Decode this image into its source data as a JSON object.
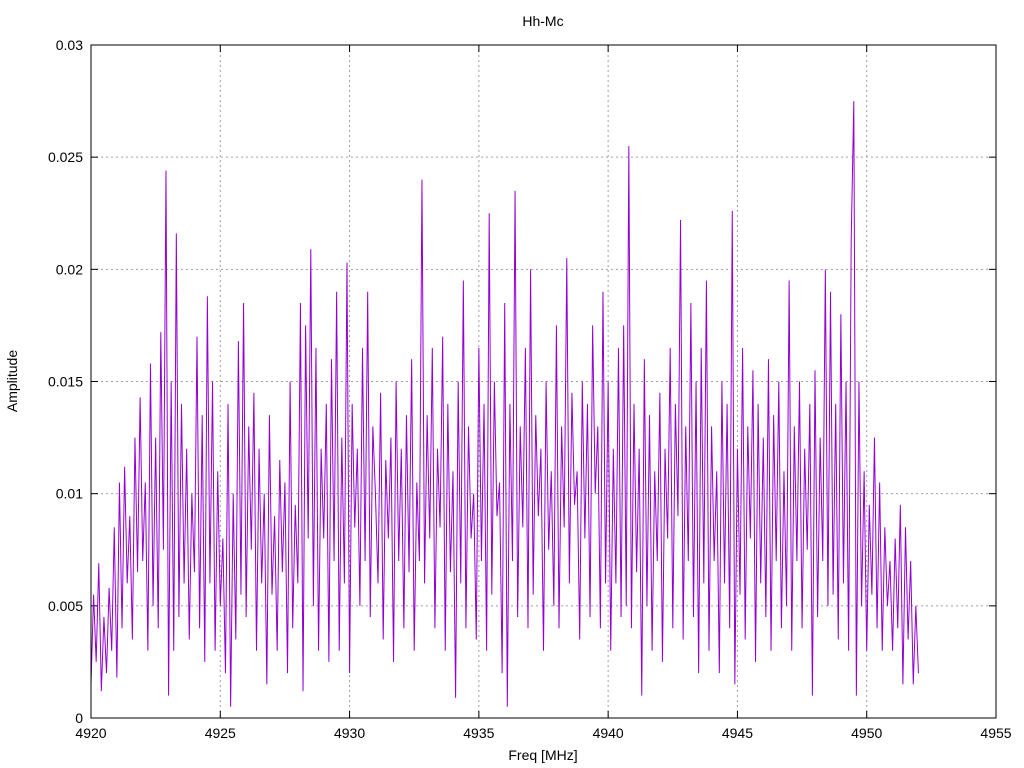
{
  "chart_data": {
    "type": "line",
    "title": "Hh-Mc",
    "xlabel": "Freq [MHz]",
    "ylabel": "Amplitude",
    "xlim": [
      4920,
      4955
    ],
    "ylim": [
      0,
      0.03
    ],
    "xticks": [
      4920,
      4925,
      4930,
      4935,
      4940,
      4945,
      4950,
      4955
    ],
    "xtick_labels": [
      "4920",
      "4925",
      "4930",
      "4935",
      "4940",
      "4945",
      "4950",
      "4955"
    ],
    "yticks": [
      0,
      0.005,
      0.01,
      0.015,
      0.02,
      0.025,
      0.03
    ],
    "ytick_labels": [
      "0",
      "0.005",
      "0.01",
      "0.015",
      "0.02",
      "0.025",
      "0.03"
    ],
    "grid": true,
    "series": [
      {
        "name": "Hh-Mc",
        "color": "#9400d3",
        "x_start": 4920,
        "x_step": 0.1,
        "values": [
          0.0015,
          0.0055,
          0.0025,
          0.0069,
          0.0012,
          0.0045,
          0.002,
          0.0058,
          0.003,
          0.0085,
          0.0018,
          0.0105,
          0.004,
          0.0112,
          0.006,
          0.009,
          0.0035,
          0.0125,
          0.0065,
          0.0143,
          0.007,
          0.0105,
          0.003,
          0.0158,
          0.005,
          0.0125,
          0.004,
          0.0172,
          0.0075,
          0.0244,
          0.001,
          0.015,
          0.003,
          0.0216,
          0.0045,
          0.014,
          0.006,
          0.012,
          0.0035,
          0.01,
          0.0065,
          0.017,
          0.004,
          0.0135,
          0.0025,
          0.0188,
          0.006,
          0.015,
          0.003,
          0.011,
          0.005,
          0.008,
          0.002,
          0.014,
          0.0005,
          0.01,
          0.0035,
          0.0168,
          0.0055,
          0.0185,
          0.0045,
          0.013,
          0.0075,
          0.0145,
          0.003,
          0.012,
          0.006,
          0.01,
          0.0015,
          0.0135,
          0.0055,
          0.009,
          0.003,
          0.0115,
          0.0065,
          0.0105,
          0.002,
          0.015,
          0.004,
          0.0095,
          0.006,
          0.0185,
          0.0012,
          0.0175,
          0.008,
          0.0209,
          0.005,
          0.0165,
          0.003,
          0.012,
          0.008,
          0.014,
          0.0025,
          0.016,
          0.007,
          0.019,
          0.003,
          0.0125,
          0.006,
          0.0203,
          0.002,
          0.014,
          0.0085,
          0.012,
          0.005,
          0.0165,
          0.007,
          0.019,
          0.0045,
          0.013,
          0.01,
          0.006,
          0.0145,
          0.0035,
          0.0115,
          0.008,
          0.0125,
          0.0025,
          0.015,
          0.007,
          0.012,
          0.004,
          0.0135,
          0.0065,
          0.016,
          0.003,
          0.0105,
          0.007,
          0.024,
          0.006,
          0.0135,
          0.008,
          0.0165,
          0.004,
          0.012,
          0.0085,
          0.017,
          0.003,
          0.014,
          0.0065,
          0.011,
          0.0009,
          0.015,
          0.006,
          0.0195,
          0.004,
          0.013,
          0.008,
          0.01,
          0.0035,
          0.0165,
          0.007,
          0.014,
          0.003,
          0.0225,
          0.0055,
          0.015,
          0.009,
          0.0105,
          0.002,
          0.0185,
          0.0005,
          0.014,
          0.007,
          0.0235,
          0.0045,
          0.013,
          0.0085,
          0.0165,
          0.004,
          0.02,
          0.0055,
          0.0135,
          0.009,
          0.012,
          0.003,
          0.015,
          0.0075,
          0.011,
          0.005,
          0.0175,
          0.004,
          0.013,
          0.0085,
          0.0205,
          0.006,
          0.0145,
          0.0095,
          0.011,
          0.0035,
          0.015,
          0.008,
          0.014,
          0.0045,
          0.0175,
          0.01,
          0.013,
          0.004,
          0.019,
          0.006,
          0.015,
          0.003,
          0.012,
          0.006,
          0.0165,
          0.0045,
          0.0175,
          0.005,
          0.0255,
          0.004,
          0.014,
          0.0065,
          0.012,
          0.001,
          0.016,
          0.005,
          0.0135,
          0.003,
          0.011,
          0.007,
          0.0145,
          0.0025,
          0.012,
          0.008,
          0.0165,
          0.004,
          0.014,
          0.009,
          0.0222,
          0.0035,
          0.013,
          0.007,
          0.0185,
          0.0045,
          0.015,
          0.002,
          0.0165,
          0.006,
          0.0195,
          0.003,
          0.013,
          0.007,
          0.011,
          0.002,
          0.015,
          0.006,
          0.014,
          0.004,
          0.0226,
          0.0015,
          0.012,
          0.0055,
          0.0165,
          0.0035,
          0.013,
          0.008,
          0.0155,
          0.0025,
          0.014,
          0.006,
          0.0125,
          0.0045,
          0.016,
          0.003,
          0.0135,
          0.007,
          0.015,
          0.004,
          0.011,
          0.005,
          0.0195,
          0.003,
          0.013,
          0.007,
          0.015,
          0.004,
          0.012,
          0.0075,
          0.014,
          0.001,
          0.0155,
          0.0045,
          0.0125,
          0.007,
          0.02,
          0.005,
          0.019,
          0.0055,
          0.014,
          0.0035,
          0.018,
          0.006,
          0.015,
          0.003,
          0.0213,
          0.0275,
          0.001,
          0.015,
          0.005,
          0.011,
          0.003,
          0.0095,
          0.0055,
          0.0125,
          0.004,
          0.0105,
          0.003,
          0.0085,
          0.005,
          0.007,
          0.003,
          0.008,
          0.004,
          0.0095,
          0.0015,
          0.0085,
          0.0035,
          0.007,
          0.0015,
          0.005,
          0.002
        ]
      }
    ]
  }
}
